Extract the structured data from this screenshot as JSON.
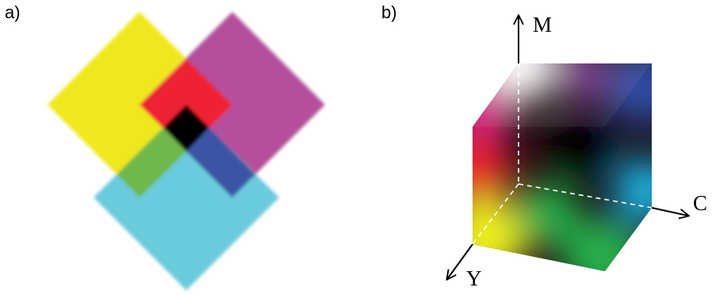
{
  "panels": {
    "a": {
      "label": "a)",
      "colors": {
        "yellow": "#f0e81a",
        "magenta": "#b54f9c",
        "cyan": "#6bcbdc",
        "red": "#ee2430",
        "green": "#6fb84a",
        "blue": "#3a55a4",
        "black": "#000000"
      }
    },
    "b": {
      "label": "b)",
      "axes": {
        "m": "M",
        "c": "C",
        "y": "Y"
      },
      "colors": {
        "white": "#ffffff",
        "magenta": "#d81b8c",
        "red": "#e8202a",
        "yellow": "#eef21a",
        "green": "#28b04c",
        "cyan": "#1fb8e8",
        "blue": "#2f4ea6",
        "black": "#000000"
      }
    }
  }
}
